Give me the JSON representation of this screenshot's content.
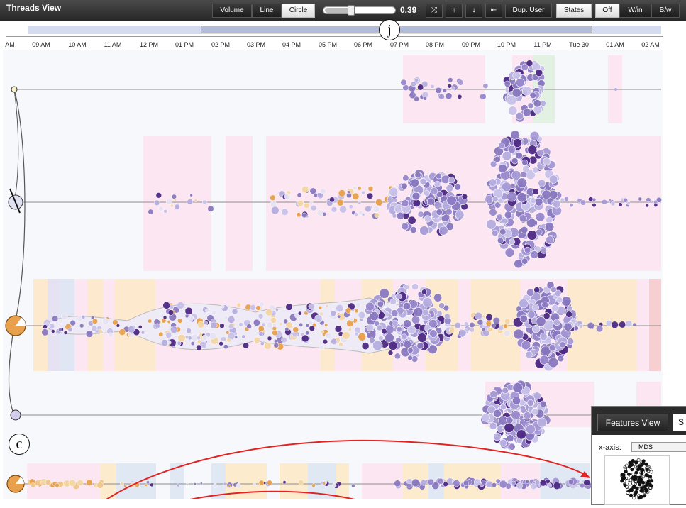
{
  "toolbar": {
    "title": "Threads View",
    "mode_buttons": [
      {
        "label": "Volume",
        "selected": false
      },
      {
        "label": "Line",
        "selected": false
      },
      {
        "label": "Circle",
        "selected": true
      }
    ],
    "slider_value": "0.39",
    "slider_level": 0.39,
    "icon_buttons": [
      "shuffle-icon",
      "arrow-up-icon",
      "arrow-down-icon",
      "collapse-icon"
    ],
    "icon_glyphs": [
      "⤮",
      "↑",
      "↓",
      "⇤"
    ],
    "dup_user_label": "Dup. User",
    "states_label": "States",
    "view_buttons": [
      {
        "label": "Off",
        "selected": true
      },
      {
        "label": "W/in",
        "selected": false
      },
      {
        "label": "B/w",
        "selected": false
      }
    ]
  },
  "time_axis": {
    "ticks": [
      "AM",
      "09 AM",
      "10 AM",
      "11 AM",
      "12 PM",
      "01 PM",
      "02 PM",
      "03 PM",
      "04 PM",
      "05 PM",
      "06 PM",
      "07 PM",
      "08 PM",
      "09 PM",
      "10 PM",
      "11 PM",
      "Tue 30",
      "01 AM",
      "02 AM"
    ]
  },
  "annotations": {
    "j": "j",
    "c": "c"
  },
  "features_panel": {
    "tab_label": "Features View",
    "second_tab_label": "S",
    "x_axis_label": "x-axis:",
    "x_axis_value": "MDS"
  },
  "colors": {
    "toolbar_bg": "#2e2e2e",
    "purple_dark": "#4e2a84",
    "purple_mid": "#8a79c0",
    "purple_light": "#b7aee0",
    "orange": "#e9a04d",
    "pink_band": "#fbe3ef",
    "orange_band": "#fde9c9",
    "blue_band": "#dde5f3",
    "arrow": "#e52222"
  }
}
